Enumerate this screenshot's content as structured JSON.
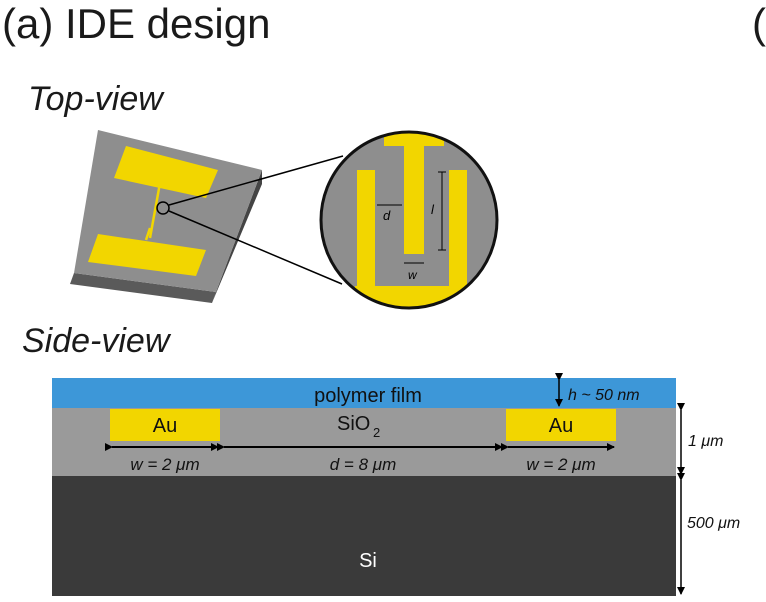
{
  "title": "(a) IDE design",
  "next_panel_fragment": "(",
  "top_view": {
    "heading": "Top-view",
    "zoom_labels": {
      "gap": "d",
      "length": "l",
      "width": "w"
    }
  },
  "side_view": {
    "heading": "Side-view",
    "layers": {
      "polymer": "polymer film",
      "oxide_main": "SiO",
      "oxide_sub": "2",
      "substrate": "Si",
      "electrode_left": "Au",
      "electrode_right": "Au"
    },
    "dimensions": {
      "polymer_thickness": "h ~ 50 nm",
      "oxide_thickness": "1 μm",
      "substrate_thickness": "500 μm",
      "electrode_width_left": "w = 2 μm",
      "gap": "d = 8 μm",
      "electrode_width_right": "w = 2 μm"
    }
  },
  "colors": {
    "gold": "#f2d600",
    "gray": "#9a9a9a",
    "dark": "#3a3a3a",
    "polymer": "#3d97d8"
  }
}
